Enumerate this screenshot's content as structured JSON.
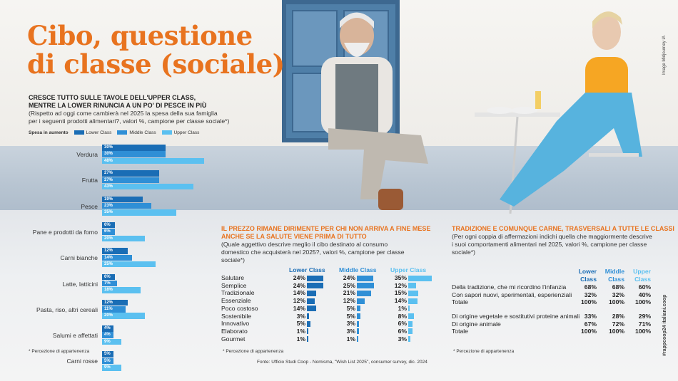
{
  "title_line1": "Cibo, questione",
  "title_line2": "di classe (sociale)",
  "image_credit": "Image Midjourney IA",
  "side_tag": "#rappcoop24 italiani.coop",
  "colors": {
    "lower": "#1a6db5",
    "middle": "#2f8fd6",
    "upper": "#5bc0f0",
    "accent": "#e8731f"
  },
  "chart_data": {
    "type": "bar",
    "title": "CRESCE TUTTO SULLE TAVOLE DELL'UPPER CLASS, MENTRE LA LOWER RINUNCIA A UN PO' DI PESCE IN PIÙ",
    "heading_line1": "CRESCE TUTTO SULLE TAVOLE DELL'UPPER CLASS,",
    "heading_line2": "MENTRE LA LOWER RINUNCIA A UN PO' DI PESCE IN PIÙ",
    "subtitle_line1": "(Rispetto ad oggi come cambierà nel 2025 la spesa della sua famiglia",
    "subtitle_line2": "per i seguenti  prodotti alimentari?, valori %, campione per classe sociale*)",
    "legend_title": "Spesa in aumento",
    "categories": [
      "Verdura",
      "Frutta",
      "Pesce",
      "Pane e prodotti da forno",
      "Carni bianche",
      "Latte, latticini",
      "Pasta, riso, altri cereali",
      "Salumi e affettati",
      "Carni rosse"
    ],
    "series": [
      {
        "name": "Lower Class",
        "values": [
          30,
          27,
          19,
          6,
          12,
          6,
          12,
          4,
          5
        ]
      },
      {
        "name": "Middle Class",
        "values": [
          30,
          27,
          23,
          6,
          14,
          7,
          11,
          4,
          5
        ]
      },
      {
        "name": "Upper Class",
        "values": [
          48,
          43,
          35,
          20,
          25,
          18,
          20,
          9,
          9
        ]
      }
    ],
    "unit": "%",
    "footnote": "* Percezione di appartenenza"
  },
  "middle": {
    "heading_line1": "IL PREZZO RIMANE DIRIMENTE PER CHI NON ARRIVA A FINE MESE",
    "heading_line2": "ANCHE SE LA SALUTE VIENE PRIMA DI TUTTO",
    "sub_line1": "(Quale aggettivo descrive meglio il cibo destinato al consumo",
    "sub_line2": "domestico che acquisterà nel 2025?, valori %, campione per classe",
    "sub_line3": "sociale*)",
    "columns": [
      "Lower Class",
      "Middle Class",
      "Upper Class"
    ],
    "rows": [
      {
        "label": "Salutare",
        "values": [
          24,
          24,
          35
        ]
      },
      {
        "label": "Semplice",
        "values": [
          24,
          25,
          12
        ]
      },
      {
        "label": "Tradizionale",
        "values": [
          14,
          21,
          15
        ]
      },
      {
        "label": "Essenziale",
        "values": [
          12,
          12,
          14
        ]
      },
      {
        "label": "Poco costoso",
        "values": [
          14,
          5,
          1
        ]
      },
      {
        "label": "Sostenibile",
        "values": [
          3,
          5,
          8
        ]
      },
      {
        "label": "Innovativo",
        "values": [
          5,
          3,
          6
        ]
      },
      {
        "label": "Elaborato",
        "values": [
          1,
          3,
          6
        ]
      },
      {
        "label": "Gourmet",
        "values": [
          1,
          1,
          3
        ]
      }
    ],
    "footnote": "* Percezione di appartenenza"
  },
  "right": {
    "heading": "TRADIZIONE E COMUNQUE CARNE, TRASVERSALI A TUTTE LE CLASSI",
    "sub_line1": "(Per ogni coppia di affermazioni indichi quella che maggiormente descrive",
    "sub_line2": "i suoi comportamenti alimentari nel 2025, valori %, campione per classe",
    "sub_line3": "sociale*)",
    "col_top": [
      "Lower",
      "Middle",
      "Upper"
    ],
    "col_bottom": [
      "Class",
      "Class",
      "Class"
    ],
    "rows": [
      {
        "label": "Della tradizione, che mi ricordino l'infanzia",
        "values": [
          "68%",
          "68%",
          "60%"
        ]
      },
      {
        "label": "Con sapori nuovi, sperimentali, esperienziali",
        "values": [
          "32%",
          "32%",
          "40%"
        ]
      },
      {
        "label": "Totale",
        "values": [
          "100%",
          "100%",
          "100%"
        ]
      },
      {
        "label": "Di origine vegetale e sostitutivi proteine animali",
        "values": [
          "33%",
          "28%",
          "29%"
        ]
      },
      {
        "label": "Di origine animale",
        "values": [
          "67%",
          "72%",
          "71%"
        ]
      },
      {
        "label": "Totale",
        "values": [
          "100%",
          "100%",
          "100%"
        ]
      }
    ],
    "footnote": "* Percezione di appartenenza"
  },
  "source": "Fonte: Ufficio Studi Coop - Nomisma, \"Wish List 2025\", consumer survey, dic. 2024"
}
